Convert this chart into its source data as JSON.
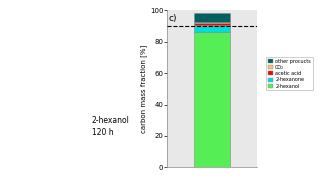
{
  "title": "c)",
  "ylabel": "carbon mass fraction [%]",
  "ylim": [
    0,
    100
  ],
  "dashed_line_y": 90,
  "bar_width": 0.4,
  "segments": [
    {
      "label": "2-hexanol",
      "value": 86.5,
      "color": "#55ee55"
    },
    {
      "label": "2-hexanone",
      "value": 4.5,
      "color": "#00dddd"
    },
    {
      "label": "acetic acid",
      "value": 1.0,
      "color": "#ff0000"
    },
    {
      "label": "CO₂",
      "value": 0.8,
      "color": "#f5c07a"
    },
    {
      "label": "other procucts",
      "value": 5.7,
      "color": "#005f5f"
    }
  ],
  "legend_colors": [
    "#005f5f",
    "#f5c07a",
    "#ff0000",
    "#00dddd",
    "#55ee55"
  ],
  "legend_labels": [
    "other procucts",
    "CO₂",
    "acetic acid",
    "2-hexanone",
    "2-hexanol"
  ],
  "yticks": [
    0,
    20,
    40,
    60,
    80,
    100
  ],
  "chart_bg": "#e8e8e8",
  "fig_bg": "#ffffff",
  "left_label_line1": "2-hexanol",
  "left_label_line2": "120 h"
}
